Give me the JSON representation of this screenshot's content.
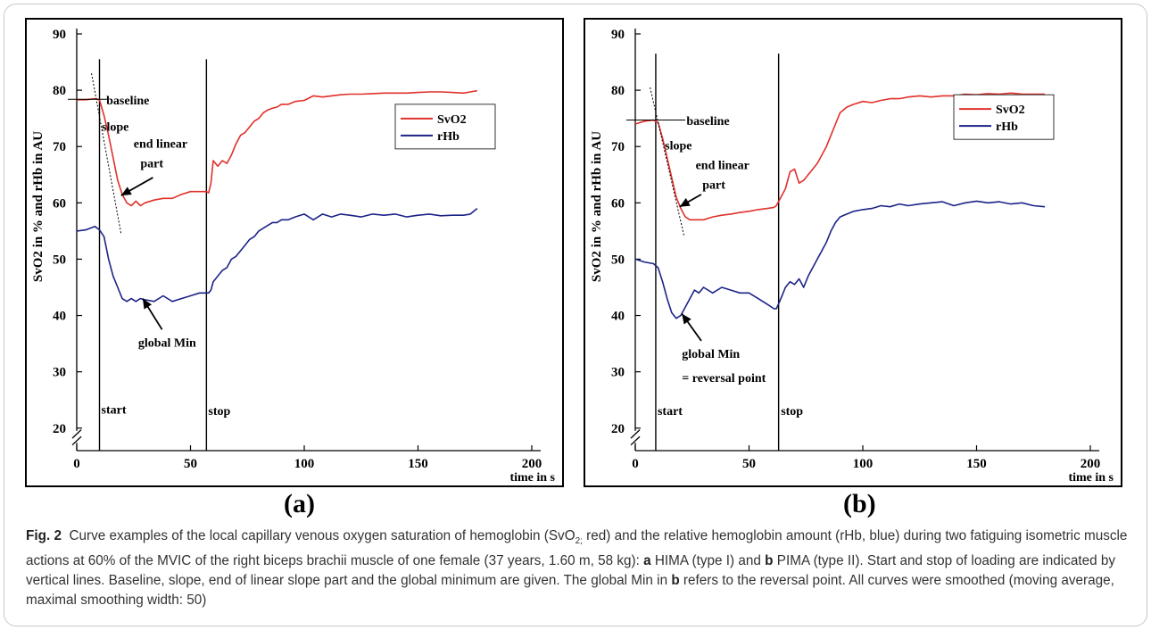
{
  "figure": {
    "panel_labels": [
      "(a)",
      "(b)"
    ],
    "caption": {
      "fig_label": "Fig. 2",
      "part1": "Curve examples of the local capillary venous oxygen saturation of hemoglobin (SvO",
      "sub": "2;",
      "part2": " red) and the relative hemoglobin amount (rHb, blue) during two fatiguing isometric muscle actions at 60% of the MVIC of the right biceps brachii muscle of one female (37 years, 1.60 m, 58 kg): ",
      "a": "a",
      "part3": " HIMA (type I) and ",
      "b": "b",
      "part4": " PIMA (type II). Start and stop of loading are indicated by vertical lines. Baseline, slope, end of linear slope part and the global minimum are given. The global Min in ",
      "b2": "b",
      "part5": " refers to the reversal point. All curves were smoothed (moving average, maximal smoothing width: 50)"
    }
  },
  "chart_data": [
    {
      "type": "line",
      "panel": "a",
      "ylabel": "SvO2 in % and rHb in AU",
      "xlabel": "time in s",
      "xlim": [
        0,
        200
      ],
      "ylim": [
        16,
        90
      ],
      "xticks": [
        0,
        50,
        100,
        150,
        200
      ],
      "yticks": [
        20,
        30,
        40,
        50,
        60,
        70,
        80,
        90
      ],
      "legend_position": "right",
      "series": [
        {
          "name": "SvO2",
          "color": "#e0302a",
          "x": [
            0,
            4,
            8,
            10,
            12,
            14,
            16,
            18,
            20,
            22,
            24,
            26,
            28,
            30,
            34,
            38,
            42,
            46,
            50,
            54,
            57,
            58,
            59,
            60,
            62,
            64,
            66,
            68,
            70,
            72,
            74,
            76,
            78,
            80,
            82,
            84,
            86,
            88,
            90,
            93,
            96,
            100,
            104,
            108,
            112,
            116,
            120,
            125,
            130,
            135,
            140,
            145,
            150,
            155,
            160,
            165,
            170,
            173,
            176
          ],
          "y": [
            78.3,
            78.3,
            78.5,
            78.3,
            75.5,
            72,
            68,
            64,
            61.5,
            60,
            59.5,
            60.3,
            59.5,
            60,
            60.5,
            60.8,
            60.8,
            61.5,
            62,
            62,
            62,
            61.8,
            63.5,
            67.5,
            66.5,
            67.5,
            67,
            68.5,
            70.5,
            72,
            72.5,
            73.5,
            74.5,
            75,
            76,
            76.5,
            76.8,
            77,
            77.5,
            77.5,
            78,
            78.2,
            79,
            78.8,
            79,
            79.2,
            79.3,
            79.3,
            79.4,
            79.5,
            79.5,
            79.5,
            79.6,
            79.7,
            79.7,
            79.6,
            79.5,
            79.7,
            79.9
          ]
        },
        {
          "name": "rHb",
          "color": "#1c2387",
          "x": [
            0,
            4,
            8,
            10,
            12,
            14,
            16,
            18,
            20,
            22,
            24,
            26,
            28,
            30,
            34,
            38,
            42,
            46,
            50,
            54,
            57,
            58,
            59,
            60,
            62,
            64,
            66,
            68,
            70,
            72,
            74,
            76,
            78,
            80,
            82,
            84,
            86,
            88,
            90,
            93,
            96,
            100,
            104,
            108,
            112,
            116,
            120,
            125,
            130,
            135,
            140,
            145,
            150,
            155,
            160,
            165,
            170,
            173,
            176
          ],
          "y": [
            55,
            55.2,
            55.8,
            55.2,
            54,
            50,
            47,
            45,
            43,
            42.5,
            43,
            42.5,
            43,
            42.8,
            42.5,
            43.5,
            42.5,
            43,
            43.5,
            44,
            44,
            44,
            44.5,
            46,
            47,
            48,
            48.5,
            50,
            50.5,
            51.5,
            52.5,
            53.5,
            54,
            55,
            55.5,
            56,
            56.5,
            56.5,
            57,
            57,
            57.5,
            58,
            57,
            58,
            57.5,
            58,
            57.8,
            57.5,
            58,
            57.8,
            58,
            57.5,
            57.8,
            58,
            57.7,
            57.8,
            57.8,
            58,
            59
          ]
        }
      ],
      "annotations": {
        "baseline": "baseline",
        "slope": "slope",
        "end_linear": [
          "end linear",
          "part"
        ],
        "global_min": "global Min",
        "start": "start",
        "stop": "stop"
      },
      "event_lines": {
        "start": 10,
        "stop": 57
      }
    },
    {
      "type": "line",
      "panel": "b",
      "ylabel": "SvO2 in % and rHb in AU",
      "xlabel": "time in s",
      "xlim": [
        0,
        200
      ],
      "ylim": [
        16,
        90
      ],
      "xticks": [
        0,
        50,
        100,
        150,
        200
      ],
      "yticks": [
        20,
        30,
        40,
        50,
        60,
        70,
        80,
        90
      ],
      "legend_position": "right",
      "series": [
        {
          "name": "SvO2",
          "color": "#e0302a",
          "x": [
            0,
            4,
            8,
            10,
            12,
            14,
            16,
            18,
            20,
            22,
            24,
            26,
            28,
            30,
            34,
            38,
            42,
            46,
            50,
            54,
            58,
            61,
            62,
            64,
            66,
            68,
            70,
            72,
            74,
            76,
            78,
            80,
            82,
            84,
            86,
            88,
            90,
            93,
            96,
            100,
            104,
            108,
            112,
            116,
            120,
            125,
            130,
            135,
            140,
            145,
            150,
            155,
            160,
            165,
            170,
            175,
            180
          ],
          "y": [
            74,
            74.5,
            74.7,
            74.3,
            71.5,
            68,
            64.5,
            61,
            59,
            57.5,
            57,
            57,
            57,
            57,
            57.5,
            57.8,
            58,
            58.3,
            58.5,
            58.8,
            59,
            59.2,
            59.5,
            61,
            62.5,
            65.5,
            66,
            63.5,
            64,
            65,
            66,
            67,
            68.5,
            70,
            72,
            74,
            76,
            77,
            77.5,
            78,
            77.8,
            78.2,
            78.5,
            78.5,
            78.8,
            79,
            78.8,
            79,
            79,
            79.3,
            79.2,
            79.4,
            79.3,
            79.5,
            79.3,
            79.3,
            79.3
          ]
        },
        {
          "name": "rHb",
          "color": "#1c2387",
          "x": [
            0,
            4,
            8,
            10,
            12,
            14,
            16,
            18,
            20,
            22,
            24,
            26,
            28,
            30,
            34,
            38,
            42,
            46,
            50,
            54,
            58,
            61,
            62,
            64,
            66,
            68,
            70,
            72,
            74,
            76,
            78,
            80,
            82,
            84,
            86,
            88,
            90,
            93,
            96,
            100,
            104,
            108,
            112,
            116,
            120,
            125,
            130,
            135,
            140,
            145,
            150,
            155,
            160,
            165,
            170,
            175,
            180
          ],
          "y": [
            50,
            49.5,
            49.2,
            48.5,
            46,
            43,
            40.5,
            39.5,
            40,
            41.5,
            43,
            44.5,
            44,
            45,
            44,
            45,
            44.5,
            44,
            44,
            43,
            42,
            41.2,
            41.2,
            43,
            45,
            46,
            45.5,
            46.5,
            45,
            47,
            48.5,
            50,
            51.5,
            53,
            55,
            56.5,
            57.5,
            58,
            58.5,
            58.8,
            59,
            59.5,
            59.3,
            59.8,
            59.5,
            59.8,
            60,
            60.2,
            59.5,
            60,
            60.3,
            60,
            60.2,
            59.8,
            60,
            59.5,
            59.3
          ]
        }
      ],
      "annotations": {
        "baseline": "baseline",
        "slope": "slope",
        "end_linear": [
          "end linear",
          "part"
        ],
        "global_min": "global Min",
        "reversal": "= reversal point",
        "start": "start",
        "stop": "stop"
      },
      "event_lines": {
        "start": 9,
        "stop": 63
      }
    }
  ]
}
